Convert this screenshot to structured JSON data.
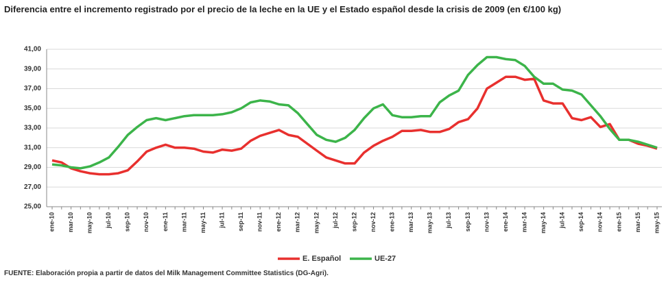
{
  "chart_data": {
    "type": "line",
    "title": "Diferencia entre el incremento registrado por el precio de la leche en la UE y el Estado español desde la crisis de 2009 (en €/100 kg)",
    "source": "FUENTE: Elaboración propia a partir de datos del Milk Management Committee Statistics (DG-Agri).",
    "categories": [
      "ene-10",
      null,
      "mar-10",
      null,
      "may-10",
      null,
      "jul-10",
      null,
      "sep-10",
      null,
      "nov-10",
      null,
      "ene-11",
      null,
      "mar-11",
      null,
      "may-11",
      null,
      "jul-11",
      null,
      "sep-11",
      null,
      "nov-11",
      null,
      "ene-12",
      null,
      "mar-12",
      null,
      "may-12",
      null,
      "jul-12",
      null,
      "sep-12",
      null,
      "nov-12",
      null,
      "ene-13",
      null,
      "mar-13",
      null,
      "may-13",
      null,
      "jul-13",
      null,
      "sep-13",
      null,
      "nov-13",
      null,
      "ene-14",
      null,
      "mar-14",
      null,
      "may-14",
      null,
      "jul-14",
      null,
      "sep-14",
      null,
      "nov-14",
      null,
      "ene-15",
      null,
      "mar-15",
      null,
      "may-15"
    ],
    "series": [
      {
        "name": "E. Español",
        "color": "#e8302e",
        "values": [
          29.7,
          29.5,
          28.9,
          28.6,
          28.4,
          28.3,
          28.3,
          28.4,
          28.7,
          29.6,
          30.6,
          31.0,
          31.3,
          31.0,
          31.0,
          30.9,
          30.6,
          30.5,
          30.8,
          30.7,
          30.9,
          31.7,
          32.2,
          32.5,
          32.8,
          32.3,
          32.1,
          31.4,
          30.7,
          30.0,
          29.7,
          29.4,
          29.4,
          30.5,
          31.2,
          31.7,
          32.1,
          32.7,
          32.7,
          32.8,
          32.6,
          32.6,
          32.9,
          33.6,
          33.9,
          35.0,
          37.0,
          37.6,
          38.2,
          38.2,
          37.9,
          38.0,
          35.8,
          35.5,
          35.5,
          34.0,
          33.8,
          34.1,
          33.1,
          33.4,
          31.8,
          31.8,
          31.4,
          31.2,
          30.9
        ]
      },
      {
        "name": "UE-27",
        "color": "#3cb44a",
        "values": [
          29.3,
          29.2,
          29.0,
          28.9,
          29.1,
          29.5,
          30.0,
          31.1,
          32.3,
          33.1,
          33.8,
          34.0,
          33.8,
          34.0,
          34.2,
          34.3,
          34.3,
          34.3,
          34.4,
          34.6,
          35.0,
          35.6,
          35.8,
          35.7,
          35.4,
          35.3,
          34.5,
          33.4,
          32.3,
          31.8,
          31.6,
          32.0,
          32.8,
          34.0,
          35.0,
          35.4,
          34.3,
          34.1,
          34.1,
          34.2,
          34.2,
          35.6,
          36.3,
          36.8,
          38.4,
          39.4,
          40.2,
          40.2,
          40.0,
          39.9,
          39.3,
          38.2,
          37.5,
          37.5,
          36.9,
          36.8,
          36.4,
          35.3,
          34.2,
          32.9,
          31.8,
          31.8,
          31.6,
          31.3,
          31.0
        ]
      }
    ],
    "ylim": [
      25,
      41
    ],
    "yticks": [
      {
        "value": 25,
        "label": "25,00"
      },
      {
        "value": 27,
        "label": "27,00"
      },
      {
        "value": 29,
        "label": "29,00"
      },
      {
        "value": 31,
        "label": "31,00"
      },
      {
        "value": 33,
        "label": "33,00"
      },
      {
        "value": 35,
        "label": "35,00"
      },
      {
        "value": 37,
        "label": "37,00"
      },
      {
        "value": 39,
        "label": "39,00"
      },
      {
        "value": 41,
        "label": "41,00"
      }
    ],
    "grid": true,
    "legend": "bottom"
  }
}
